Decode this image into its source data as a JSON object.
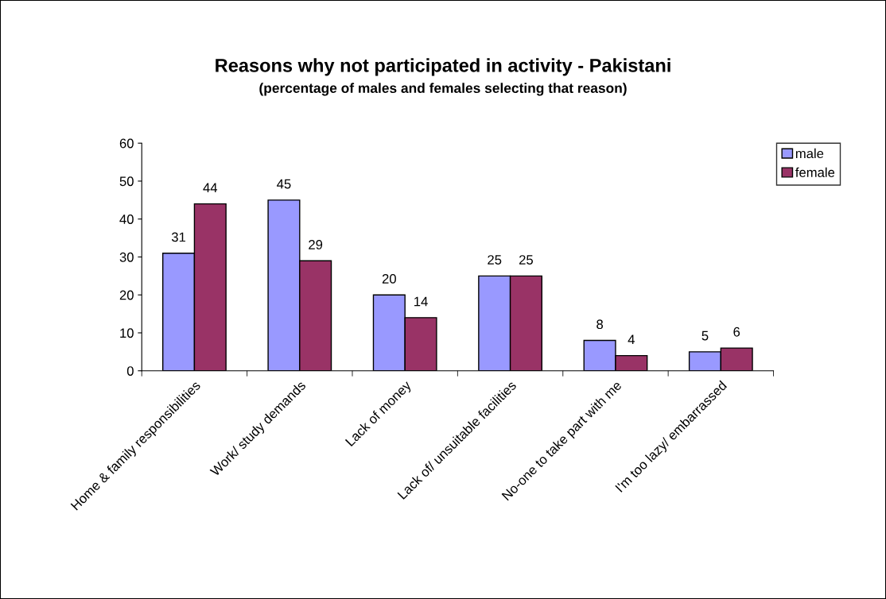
{
  "chart_data": {
    "type": "bar",
    "title": "Reasons why not participated in activity - Pakistani",
    "subtitle": "(percentage of males and females selecting that reason)",
    "categories": [
      "Home & family responsibilities",
      "Work/ study demands",
      "Lack of money",
      "Lack of/ unsuitable facilities",
      "No-one to take part with me",
      "I'm too lazy/ embarrassed"
    ],
    "series": [
      {
        "name": "male",
        "color": "#9999ff",
        "values": [
          31,
          45,
          20,
          25,
          8,
          5
        ]
      },
      {
        "name": "female",
        "color": "#993366",
        "values": [
          44,
          29,
          14,
          25,
          4,
          6
        ]
      }
    ],
    "ylim": [
      0,
      60
    ],
    "yticks": [
      0,
      10,
      20,
      30,
      40,
      50,
      60
    ],
    "grid": false,
    "legend": "top right",
    "data_labels": true
  }
}
